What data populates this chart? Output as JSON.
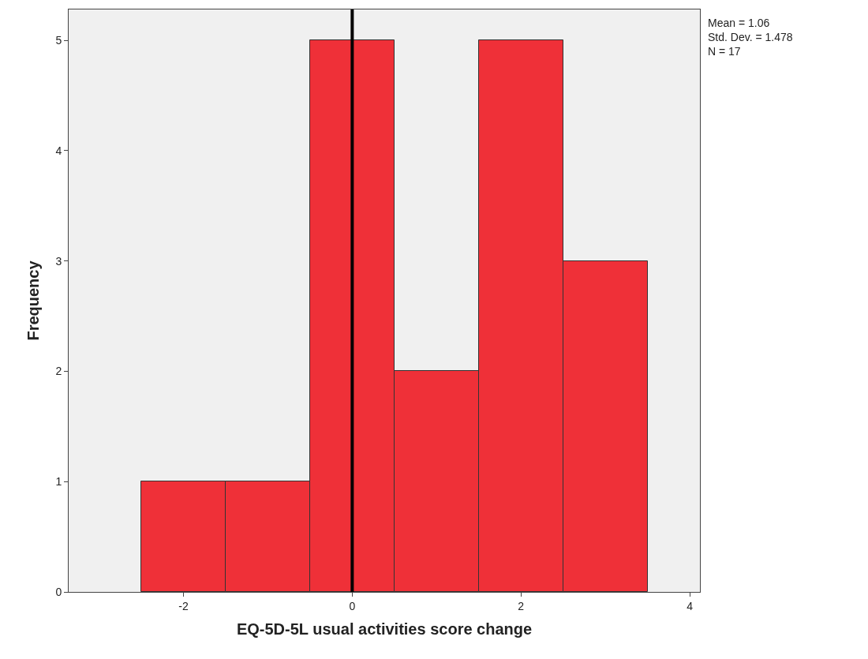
{
  "chart_data": {
    "type": "histogram",
    "xlabel": "EQ-5D-5L usual activities score change",
    "ylabel": "Frequency",
    "bins": [
      -2.5,
      -1.5,
      -0.5,
      0.5,
      1.5,
      2.5,
      3.5
    ],
    "values": [
      1,
      1,
      5,
      2,
      5,
      3
    ],
    "color": "#ef3038",
    "xlim": [
      -3.36,
      4.12
    ],
    "xticks": [
      -2,
      0,
      2,
      4
    ],
    "ylim": [
      0,
      5.28
    ],
    "yticks": [
      0,
      1,
      2,
      3,
      4,
      5
    ],
    "ref_lines": [
      {
        "axis": "x",
        "value": 0,
        "color": "#000000"
      }
    ],
    "annotations": [
      "Mean = 1.06",
      "Std. Dev. = 1.478",
      "N = 17"
    ]
  }
}
